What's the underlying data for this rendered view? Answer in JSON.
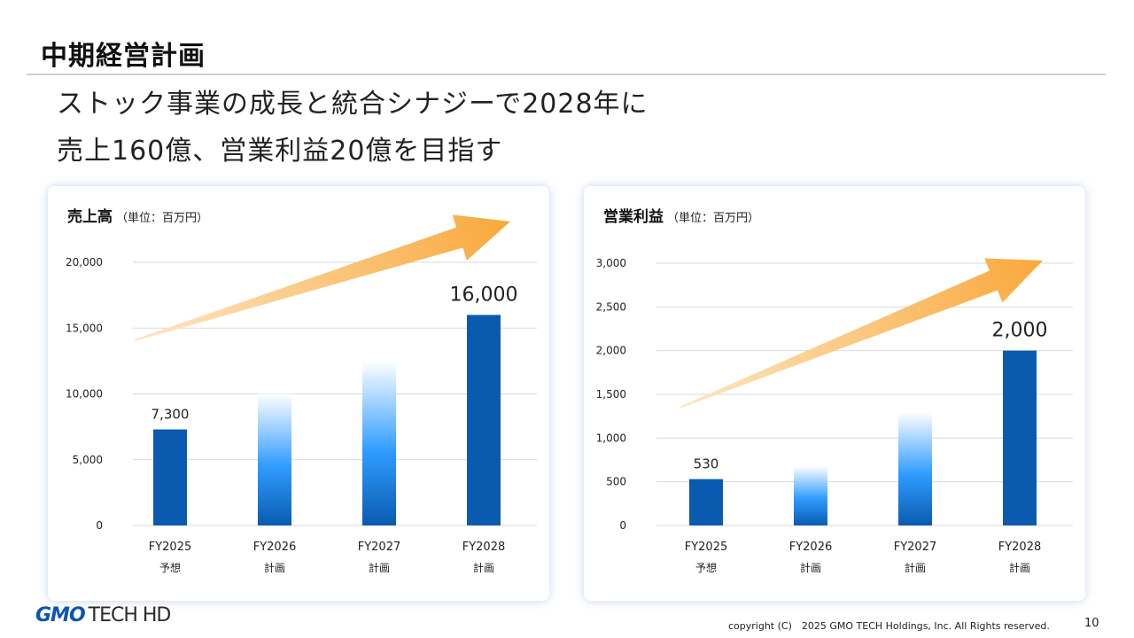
{
  "slide": {
    "title": "中期経営計画",
    "lead_line1": "ストック事業の成長と統合シナジーで2028年に",
    "lead_line2": "売上160億、営業利益20億を目指す"
  },
  "colors": {
    "bar_solid": "#0a5bb0",
    "bar_gradient_bottom": "#0a5bb0",
    "bar_gradient_mid": "#2f9cff",
    "bar_gradient_top": "#ffffff",
    "arrow_head": "#f9a83a",
    "arrow_tail": "#fde7c4",
    "card_shadow": "#5a82c8"
  },
  "charts": [
    {
      "title": "売上高",
      "unit": "（単位：百万円）"
    },
    {
      "title": "営業利益",
      "unit": "（単位：百万円）"
    }
  ],
  "chart_data": [
    {
      "type": "bar",
      "title": "売上高（単位：百万円）",
      "categories": [
        "FY2025",
        "FY2026",
        "FY2027",
        "FY2028"
      ],
      "sublabels": [
        "予想",
        "計画",
        "計画",
        "計画"
      ],
      "values": [
        7300,
        10000,
        12500,
        16000
      ],
      "styles": [
        "solid",
        "gradient",
        "gradient",
        "solid"
      ],
      "data_labels": [
        "7,300",
        "",
        "",
        "16,000"
      ],
      "yticks": [
        "0",
        "5,000",
        "10,000",
        "15,000",
        "20,000"
      ],
      "ylim": [
        0,
        20000
      ],
      "grid": true,
      "trend_arrow": true
    },
    {
      "type": "bar",
      "title": "営業利益（単位：百万円）",
      "categories": [
        "FY2025",
        "FY2026",
        "FY2027",
        "FY2028"
      ],
      "sublabels": [
        "予想",
        "計画",
        "計画",
        "計画"
      ],
      "values": [
        530,
        680,
        1300,
        2000
      ],
      "styles": [
        "solid",
        "gradient",
        "gradient",
        "solid"
      ],
      "data_labels": [
        "530",
        "",
        "",
        "2,000"
      ],
      "yticks": [
        "0",
        "500",
        "1,000",
        "1,500",
        "2,000",
        "2,500",
        "3,000"
      ],
      "ylim": [
        0,
        3000
      ],
      "grid": true,
      "trend_arrow": true
    }
  ],
  "footer": {
    "logo_gmo": "GMO",
    "logo_tech": "TECH HD",
    "copyright": "copyright (C)　2025 GMO TECH Holdings, Inc. All Rights reserved.",
    "page_number": "10"
  }
}
